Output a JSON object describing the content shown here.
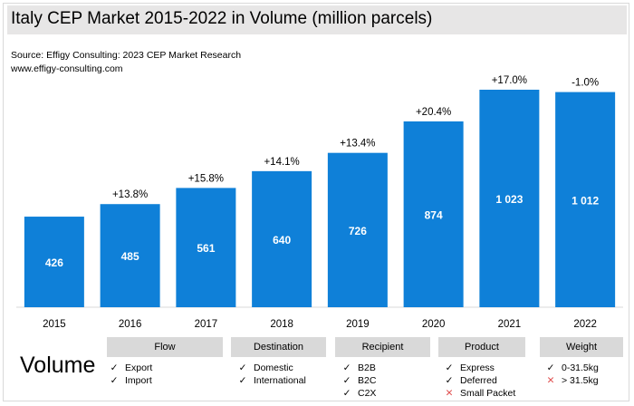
{
  "header": {
    "title": "Italy CEP Market 2015-2022 in Volume (million parcels)",
    "source_line1": "Source: Effigy Consulting: 2023 CEP Market Research",
    "source_line2": "www.effigy-consulting.com"
  },
  "chart_data": {
    "type": "bar",
    "title": "Italy CEP Market 2015-2022 in Volume (million parcels)",
    "xlabel": "",
    "ylabel": "",
    "categories": [
      "2015",
      "2016",
      "2017",
      "2018",
      "2019",
      "2020",
      "2021",
      "2022"
    ],
    "values": [
      426,
      485,
      561,
      640,
      726,
      874,
      1023,
      1012
    ],
    "value_labels": [
      "426",
      "485",
      "561",
      "640",
      "726",
      "874",
      "1 023",
      "1 012"
    ],
    "growth_labels": [
      "",
      "+13.8%",
      "+15.8%",
      "+14.1%",
      "+13.4%",
      "+20.4%",
      "+17.0%",
      "-1.0%"
    ],
    "ylim": [
      0,
      1100
    ],
    "grid": false,
    "bar_color": "#0f80d8"
  },
  "footer": {
    "volume_label": "Volume",
    "categories": [
      {
        "name": "Flow",
        "items": [
          {
            "mark": "check",
            "text": "Export"
          },
          {
            "mark": "check",
            "text": "Import"
          }
        ]
      },
      {
        "name": "Destination",
        "items": [
          {
            "mark": "check",
            "text": "Domestic"
          },
          {
            "mark": "check",
            "text": "International"
          }
        ]
      },
      {
        "name": "Recipient",
        "items": [
          {
            "mark": "check",
            "text": "B2B"
          },
          {
            "mark": "check",
            "text": "B2C"
          },
          {
            "mark": "check",
            "text": "C2X"
          }
        ]
      },
      {
        "name": "Product",
        "items": [
          {
            "mark": "check",
            "text": "Express"
          },
          {
            "mark": "check",
            "text": "Deferred"
          },
          {
            "mark": "cross",
            "text": "Small Packet"
          }
        ]
      },
      {
        "name": "Weight",
        "items": [
          {
            "mark": "check",
            "text": "0-31.5kg"
          },
          {
            "mark": "cross",
            "text": "> 31.5kg"
          }
        ]
      }
    ]
  }
}
